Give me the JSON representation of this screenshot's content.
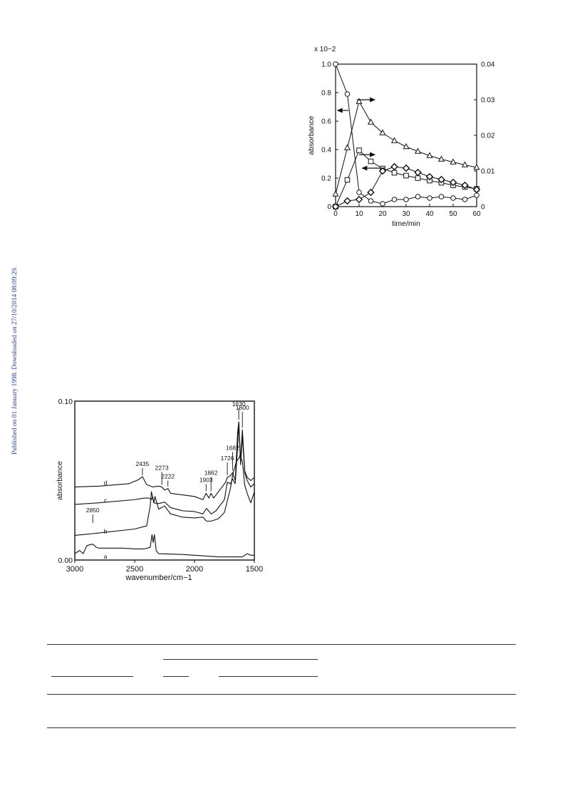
{
  "sidebar_note": "Published on 01 January 1998. Downloaded on 27/10/2014 08:09:29.",
  "colors": {
    "ink": "#111111",
    "sidebar": "#2a3ea0"
  },
  "chart_data": [
    {
      "type": "line",
      "xlabel": "time/min",
      "ylabel": "absorbance",
      "scale_note": "x 10−2",
      "xlim": [
        0,
        60
      ],
      "ylim": [
        0,
        1.0
      ],
      "y2lim": [
        0,
        0.04
      ],
      "x_ticks": [
        "0",
        "10",
        "20",
        "30",
        "40",
        "50",
        "60"
      ],
      "y_ticks": [
        "0",
        "0.2",
        "0.4",
        "0.6",
        "0.8",
        "1.0"
      ],
      "y2_ticks": [
        "0",
        "0.01",
        "0.02",
        "0.03",
        "0.04"
      ],
      "legend": "none",
      "series": [
        {
          "marker": "circle",
          "axis": "left",
          "x": [
            0,
            5,
            10,
            15,
            20,
            25,
            30,
            35,
            40,
            45,
            50,
            55,
            60
          ],
          "y": [
            1.0,
            0.79,
            0.1,
            0.04,
            0.02,
            0.05,
            0.05,
            0.07,
            0.06,
            0.07,
            0.06,
            0.05,
            0.08
          ]
        },
        {
          "marker": "triangle",
          "axis": "right",
          "x": [
            0,
            5,
            10,
            15,
            20,
            25,
            30,
            35,
            40,
            45,
            50,
            55,
            60
          ],
          "y": [
            0.0035,
            0.0165,
            0.0295,
            0.0237,
            0.0207,
            0.0185,
            0.0168,
            0.0155,
            0.0143,
            0.0133,
            0.0125,
            0.0117,
            0.011
          ]
        },
        {
          "marker": "square",
          "axis": "right",
          "x": [
            0,
            5,
            10,
            15,
            20,
            25,
            30,
            35,
            40,
            45,
            50,
            55,
            60
          ],
          "y": [
            0.0,
            0.0075,
            0.0158,
            0.0127,
            0.0107,
            0.0095,
            0.0087,
            0.008,
            0.0073,
            0.0067,
            0.006,
            0.0055,
            0.005
          ]
        },
        {
          "marker": "diamond",
          "axis": "left",
          "x": [
            0,
            5,
            10,
            15,
            20,
            25,
            30,
            35,
            40,
            45,
            50,
            55,
            60
          ],
          "y": [
            0.0,
            0.04,
            0.05,
            0.1,
            0.25,
            0.28,
            0.27,
            0.24,
            0.21,
            0.19,
            0.17,
            0.15,
            0.12
          ]
        }
      ]
    },
    {
      "type": "line",
      "xlabel": "wavenumber/cm−1",
      "ylabel": "absorbance",
      "xlim": [
        3000,
        1500
      ],
      "ylim": [
        0,
        0.1
      ],
      "x_ticks": [
        "3000",
        "2500",
        "2000",
        "1500"
      ],
      "y_ticks": [
        "0.00",
        "0.10"
      ],
      "legend": "none",
      "series": [
        {
          "name": "a",
          "x": [
            3000,
            2960,
            2930,
            2900,
            2880,
            2850,
            2820,
            2800,
            2600,
            2500,
            2420,
            2370,
            2355,
            2345,
            2335,
            2320,
            2300,
            2100,
            2000,
            1800,
            1600,
            1560,
            1530,
            1500
          ],
          "y": [
            0.004,
            0.006,
            0.004,
            0.009,
            0.0095,
            0.01,
            0.008,
            0.0075,
            0.0075,
            0.007,
            0.007,
            0.008,
            0.016,
            0.011,
            0.016,
            0.006,
            0.004,
            0.0035,
            0.003,
            0.002,
            0.002,
            0.004,
            0.003,
            0.003
          ]
        },
        {
          "name": "b",
          "x": [
            3000,
            2800,
            2500,
            2400,
            2370,
            2360,
            2340,
            2330,
            2300,
            2250,
            2200,
            2100,
            2000,
            1930,
            1900,
            1860,
            1800,
            1750,
            1700,
            1680,
            1650,
            1630,
            1620,
            1600,
            1580,
            1560,
            1530,
            1500
          ],
          "y": [
            0.0155,
            0.017,
            0.0195,
            0.0215,
            0.034,
            0.043,
            0.036,
            0.04,
            0.032,
            0.034,
            0.029,
            0.027,
            0.0265,
            0.027,
            0.0245,
            0.0245,
            0.026,
            0.03,
            0.045,
            0.054,
            0.062,
            0.064,
            0.066,
            0.062,
            0.047,
            0.042,
            0.036,
            0.043
          ]
        },
        {
          "name": "c",
          "x": [
            3000,
            2800,
            2500,
            2420,
            2380,
            2360,
            2350,
            2340,
            2300,
            2250,
            2200,
            2100,
            2000,
            1930,
            1900,
            1860,
            1820,
            1750,
            1726,
            1700,
            1682,
            1660,
            1640,
            1630,
            1615,
            1600,
            1580,
            1560,
            1530,
            1500
          ],
          "y": [
            0.035,
            0.036,
            0.038,
            0.039,
            0.039,
            0.038,
            0.04,
            0.036,
            0.0355,
            0.0365,
            0.033,
            0.031,
            0.0305,
            0.029,
            0.0325,
            0.029,
            0.031,
            0.038,
            0.049,
            0.048,
            0.051,
            0.048,
            0.071,
            0.086,
            0.06,
            0.078,
            0.055,
            0.05,
            0.046,
            0.048
          ]
        },
        {
          "name": "d",
          "x": [
            3000,
            2800,
            2550,
            2470,
            2435,
            2400,
            2350,
            2300,
            2273,
            2250,
            2222,
            2200,
            2100,
            2000,
            1930,
            1903,
            1880,
            1862,
            1840,
            1780,
            1740,
            1726,
            1700,
            1682,
            1660,
            1640,
            1630,
            1615,
            1600,
            1580,
            1560,
            1530,
            1500
          ],
          "y": [
            0.046,
            0.0465,
            0.048,
            0.0505,
            0.0525,
            0.0475,
            0.046,
            0.0465,
            0.046,
            0.044,
            0.045,
            0.042,
            0.041,
            0.04,
            0.038,
            0.042,
            0.039,
            0.042,
            0.039,
            0.045,
            0.049,
            0.052,
            0.053,
            0.055,
            0.05,
            0.08,
            0.087,
            0.063,
            0.082,
            0.056,
            0.052,
            0.05,
            0.052
          ]
        }
      ],
      "annotations": [
        "2435",
        "2273",
        "2222",
        "1903",
        "1862",
        "1726",
        "1682",
        "1630",
        "1600",
        "2850"
      ]
    }
  ]
}
